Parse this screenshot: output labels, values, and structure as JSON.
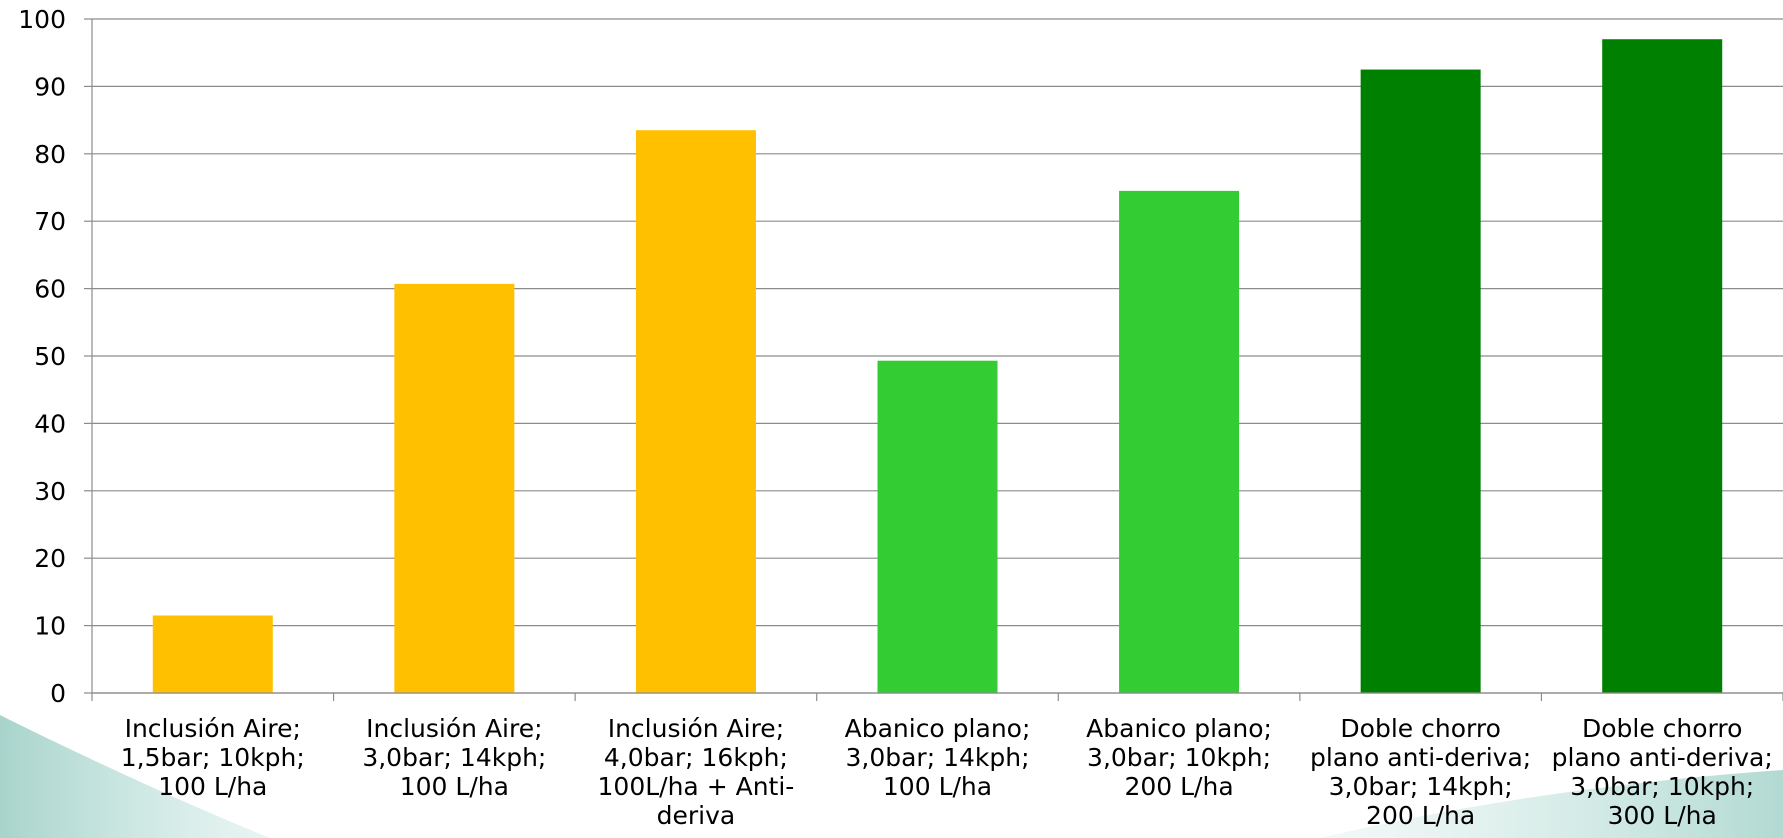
{
  "chart_data": {
    "type": "bar",
    "categories": [
      [
        "Inclusión Aire;",
        "1,5bar; 10kph;",
        "100 L/ha"
      ],
      [
        "Inclusión Aire;",
        "3,0bar; 14kph;",
        "100 L/ha"
      ],
      [
        "Inclusión Aire;",
        "4,0bar; 16kph;",
        "100L/ha + Anti-",
        "deriva"
      ],
      [
        "Abanico plano;",
        "3,0bar; 14kph;",
        "100 L/ha"
      ],
      [
        "Abanico plano;",
        "3,0bar; 10kph;",
        "200 L/ha"
      ],
      [
        "Doble chorro",
        "plano anti-deriva;",
        "3,0bar; 14kph;",
        "200 L/ha"
      ],
      [
        "Doble chorro",
        "plano anti-deriva;",
        "3,0bar; 10kph;",
        "300 L/ha"
      ]
    ],
    "values": [
      11.5,
      60.7,
      83.5,
      49.3,
      74.5,
      92.5,
      97.0
    ],
    "bar_colors": [
      "#FFC000",
      "#FFC000",
      "#FFC000",
      "#33CC33",
      "#33CC33",
      "#008000",
      "#008000"
    ],
    "ylim": [
      0,
      100
    ],
    "yticks": [
      0,
      10,
      20,
      30,
      40,
      50,
      60,
      70,
      80,
      90,
      100
    ],
    "grid": true,
    "title": "",
    "xlabel": "",
    "ylabel": ""
  }
}
